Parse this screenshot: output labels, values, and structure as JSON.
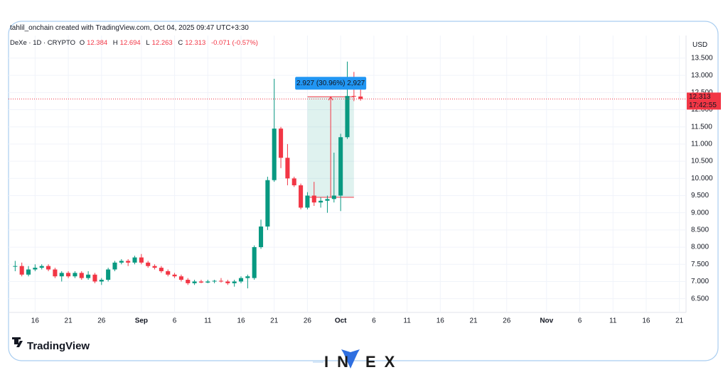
{
  "chart_data": {
    "type": "candlestick",
    "header": "tahlil_onchain created with TradingView.com, Oct 04, 2025 09:47 UTC+3:30",
    "symbol": "DeXe · 1D · CRYPTO",
    "ohlc_labels": [
      "O",
      "H",
      "L",
      "C"
    ],
    "change_label": "-0.071 (-0.57%)",
    "currency": "USD",
    "countdown": "17:42:55",
    "logo": "TradingView",
    "watermark": [
      "IN",
      "EX"
    ],
    "measure": {
      "label": "2.927 (30.96%) 2,927",
      "x0": "2025-09-26",
      "x1": "2025-10-03",
      "low": 9.45,
      "high": 12.377
    },
    "up_color": "#089981",
    "down_color": "#f23645",
    "x": [
      "2025-08-13",
      "2025-08-14",
      "2025-08-15",
      "2025-08-16",
      "2025-08-17",
      "2025-08-18",
      "2025-08-19",
      "2025-08-20",
      "2025-08-21",
      "2025-08-22",
      "2025-08-23",
      "2025-08-24",
      "2025-08-25",
      "2025-08-26",
      "2025-08-27",
      "2025-08-28",
      "2025-08-29",
      "2025-08-30",
      "2025-08-31",
      "2025-09-01",
      "2025-09-02",
      "2025-09-03",
      "2025-09-04",
      "2025-09-05",
      "2025-09-06",
      "2025-09-07",
      "2025-09-08",
      "2025-09-09",
      "2025-09-10",
      "2025-09-11",
      "2025-09-12",
      "2025-09-13",
      "2025-09-14",
      "2025-09-15",
      "2025-09-16",
      "2025-09-17",
      "2025-09-18",
      "2025-09-19",
      "2025-09-20",
      "2025-09-21",
      "2025-09-22",
      "2025-09-23",
      "2025-09-24",
      "2025-09-25",
      "2025-09-26",
      "2025-09-27",
      "2025-09-28",
      "2025-09-29",
      "2025-09-30",
      "2025-10-01",
      "2025-10-02",
      "2025-10-03",
      "2025-10-04"
    ],
    "open": [
      7.45,
      7.45,
      7.2,
      7.35,
      7.4,
      7.45,
      7.35,
      7.15,
      7.25,
      7.15,
      7.25,
      7.1,
      7.2,
      7.0,
      7.05,
      7.35,
      7.55,
      7.6,
      7.55,
      7.7,
      7.55,
      7.45,
      7.4,
      7.3,
      7.2,
      7.15,
      7.05,
      6.95,
      7.0,
      6.97,
      7.0,
      7.02,
      7.0,
      6.95,
      7.0,
      7.1,
      7.1,
      8.0,
      8.6,
      9.95,
      11.45,
      10.6,
      10.0,
      9.8,
      9.15,
      9.5,
      9.3,
      9.35,
      9.4,
      9.5,
      11.2,
      12.4,
      12.384
    ],
    "high": [
      7.6,
      7.55,
      7.45,
      7.5,
      7.5,
      7.5,
      7.4,
      7.3,
      7.3,
      7.3,
      7.3,
      7.3,
      7.25,
      7.1,
      7.4,
      7.6,
      7.65,
      7.65,
      7.75,
      7.8,
      7.6,
      7.5,
      7.45,
      7.35,
      7.25,
      7.2,
      7.1,
      7.05,
      7.05,
      7.05,
      7.05,
      7.1,
      7.05,
      7.05,
      7.15,
      7.2,
      8.05,
      8.8,
      10.05,
      12.9,
      11.5,
      11.0,
      10.05,
      9.85,
      9.6,
      9.9,
      9.45,
      9.5,
      10.75,
      11.3,
      13.4,
      13.1,
      12.694
    ],
    "low": [
      7.3,
      7.15,
      7.15,
      7.3,
      7.35,
      7.3,
      7.1,
      7.0,
      7.1,
      7.1,
      7.05,
      7.05,
      6.95,
      6.9,
      7.0,
      7.3,
      7.5,
      7.45,
      7.5,
      7.5,
      7.4,
      7.35,
      7.25,
      7.15,
      7.1,
      7.0,
      6.9,
      6.9,
      6.95,
      6.95,
      6.95,
      6.97,
      6.9,
      6.85,
      6.95,
      6.8,
      7.05,
      7.95,
      8.5,
      9.9,
      10.3,
      9.8,
      9.75,
      9.1,
      9.1,
      9.2,
      9.15,
      9.0,
      9.3,
      9.05,
      11.15,
      12.25,
      12.263
    ],
    "close": [
      7.45,
      7.2,
      7.35,
      7.4,
      7.45,
      7.35,
      7.15,
      7.25,
      7.15,
      7.25,
      7.1,
      7.2,
      7.0,
      7.05,
      7.35,
      7.55,
      7.6,
      7.55,
      7.7,
      7.55,
      7.45,
      7.4,
      7.3,
      7.2,
      7.15,
      7.05,
      6.95,
      7.0,
      6.97,
      7.0,
      7.02,
      7.0,
      6.95,
      7.0,
      7.1,
      7.15,
      8.0,
      8.6,
      9.95,
      11.45,
      10.6,
      10.0,
      9.8,
      9.15,
      9.5,
      9.3,
      9.35,
      9.4,
      9.5,
      11.2,
      12.4,
      12.384,
      12.313
    ],
    "xlim": [
      "2025-08-12",
      "2025-11-22"
    ],
    "xticks": [
      {
        "value": "2025-08-16",
        "label": "16"
      },
      {
        "value": "2025-08-21",
        "label": "21"
      },
      {
        "value": "2025-08-26",
        "label": "26"
      },
      {
        "value": "2025-09-01",
        "label": "Sep"
      },
      {
        "value": "2025-09-06",
        "label": "6"
      },
      {
        "value": "2025-09-11",
        "label": "11"
      },
      {
        "value": "2025-09-16",
        "label": "16"
      },
      {
        "value": "2025-09-21",
        "label": "21"
      },
      {
        "value": "2025-09-26",
        "label": "26"
      },
      {
        "value": "2025-10-01",
        "label": "Oct"
      },
      {
        "value": "2025-10-06",
        "label": "6"
      },
      {
        "value": "2025-10-11",
        "label": "11"
      },
      {
        "value": "2025-10-16",
        "label": "16"
      },
      {
        "value": "2025-10-21",
        "label": "21"
      },
      {
        "value": "2025-10-26",
        "label": "26"
      },
      {
        "value": "2025-11-01",
        "label": "Nov"
      },
      {
        "value": "2025-11-06",
        "label": "6"
      },
      {
        "value": "2025-11-11",
        "label": "11"
      },
      {
        "value": "2025-11-16",
        "label": "16"
      },
      {
        "value": "2025-11-21",
        "label": "21"
      }
    ],
    "ylim": [
      6.1,
      14.16
    ],
    "yticks": [
      {
        "value": 6.5,
        "label": "6.500"
      },
      {
        "value": 7,
        "label": "7.000"
      },
      {
        "value": 7.5,
        "label": "7.500"
      },
      {
        "value": 8,
        "label": "8.000"
      },
      {
        "value": 8.5,
        "label": "8.500"
      },
      {
        "value": 9,
        "label": "9.000"
      },
      {
        "value": 9.5,
        "label": "9.500"
      },
      {
        "value": 10,
        "label": "10.000"
      },
      {
        "value": 10.5,
        "label": "10.500"
      },
      {
        "value": 11,
        "label": "11.000"
      },
      {
        "value": 11.5,
        "label": "11.500"
      },
      {
        "value": 12,
        "label": "12.000"
      },
      {
        "value": 12.5,
        "label": "12.500"
      },
      {
        "value": 13,
        "label": "13.000"
      },
      {
        "value": 13.5,
        "label": "13.500"
      }
    ],
    "grid": true
  }
}
